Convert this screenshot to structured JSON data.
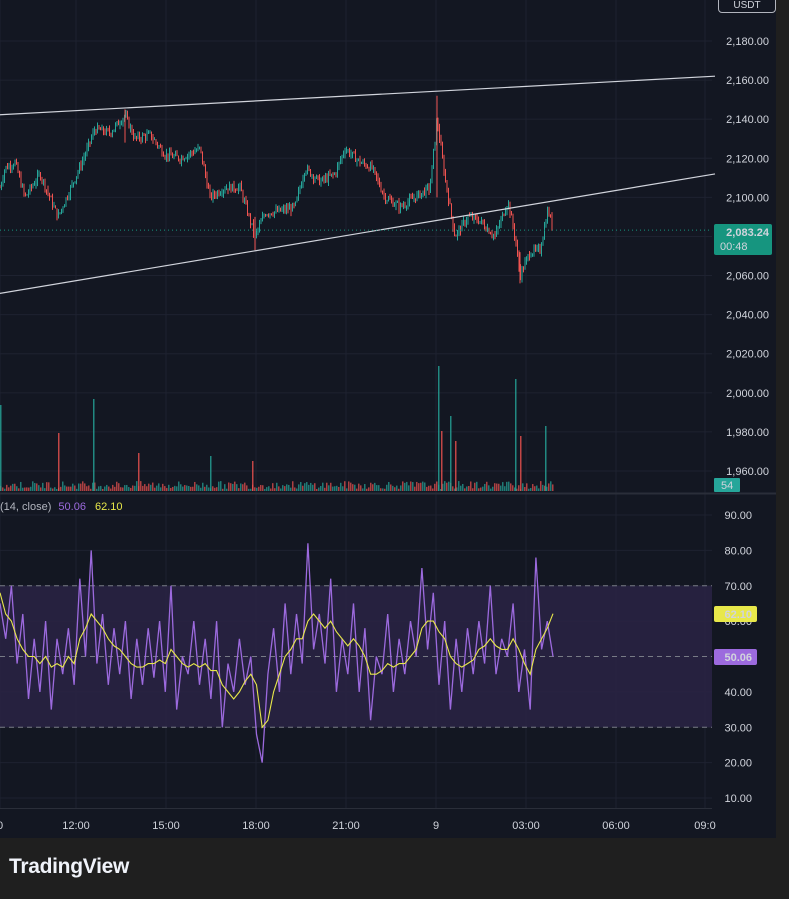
{
  "currency_button": "USDT",
  "brand": "TradingView",
  "colors": {
    "background": "#131722",
    "up": "#26a69a",
    "down": "#ef5350",
    "trendline": "#d1d4dc",
    "rsi_line": "#9c6ade",
    "rsi_ma_line": "#e8e84a",
    "rsi_band": "#2a2344",
    "price_tag": "#16957f",
    "volume_tag": "#26a69a"
  },
  "price_axis": {
    "ticks": [
      "2,180.00",
      "2,160.00",
      "2,140.00",
      "2,120.00",
      "2,100.00",
      "2,080.00",
      "2,060.00",
      "2,040.00",
      "2,020.00",
      "2,000.00",
      "1,980.00",
      "1,960.00"
    ],
    "last_price": "2,083.24",
    "countdown": "00:48",
    "volume_value": "54"
  },
  "indicator": {
    "legend_prefix": "(14, close)",
    "rsi_value": "50.06",
    "ma_value": "62.10",
    "ticks": [
      "90.00",
      "80.00",
      "70.00",
      "60.00",
      "50.00",
      "40.00",
      "30.00",
      "20.00",
      "10.00"
    ],
    "upper_band": 70,
    "middle_band": 50,
    "lower_band": 30
  },
  "time_axis": {
    "ticks": [
      "0",
      "12:00",
      "15:00",
      "18:00",
      "21:00",
      "9",
      "03:00",
      "06:00",
      "09:0"
    ]
  },
  "chart_data": [
    {
      "type": "candlestick",
      "title": "",
      "x_labels": [
        "12:00",
        "15:00",
        "18:00",
        "21:00",
        "9",
        "03:00",
        "06:00"
      ],
      "ylim": [
        1950,
        2190
      ],
      "close_path": [
        {
          "x": 0,
          "y": 2105
        },
        {
          "x": 5,
          "y": 2115
        },
        {
          "x": 15,
          "y": 2118
        },
        {
          "x": 25,
          "y": 2100
        },
        {
          "x": 40,
          "y": 2112
        },
        {
          "x": 58,
          "y": 2090
        },
        {
          "x": 70,
          "y": 2104
        },
        {
          "x": 82,
          "y": 2118
        },
        {
          "x": 95,
          "y": 2135
        },
        {
          "x": 110,
          "y": 2133
        },
        {
          "x": 125,
          "y": 2142
        },
        {
          "x": 135,
          "y": 2130
        },
        {
          "x": 150,
          "y": 2132
        },
        {
          "x": 165,
          "y": 2122
        },
        {
          "x": 180,
          "y": 2120
        },
        {
          "x": 200,
          "y": 2125
        },
        {
          "x": 210,
          "y": 2100
        },
        {
          "x": 225,
          "y": 2105
        },
        {
          "x": 240,
          "y": 2105
        },
        {
          "x": 255,
          "y": 2080
        },
        {
          "x": 265,
          "y": 2092
        },
        {
          "x": 280,
          "y": 2093
        },
        {
          "x": 295,
          "y": 2095
        },
        {
          "x": 305,
          "y": 2115
        },
        {
          "x": 320,
          "y": 2108
        },
        {
          "x": 335,
          "y": 2112
        },
        {
          "x": 345,
          "y": 2125
        },
        {
          "x": 360,
          "y": 2118
        },
        {
          "x": 372,
          "y": 2115
        },
        {
          "x": 385,
          "y": 2100
        },
        {
          "x": 400,
          "y": 2095
        },
        {
          "x": 415,
          "y": 2100
        },
        {
          "x": 430,
          "y": 2105
        },
        {
          "x": 437,
          "y": 2140
        },
        {
          "x": 445,
          "y": 2110
        },
        {
          "x": 455,
          "y": 2080
        },
        {
          "x": 468,
          "y": 2090
        },
        {
          "x": 480,
          "y": 2088
        },
        {
          "x": 495,
          "y": 2080
        },
        {
          "x": 508,
          "y": 2098
        },
        {
          "x": 515,
          "y": 2080
        },
        {
          "x": 520,
          "y": 2060
        },
        {
          "x": 530,
          "y": 2072
        },
        {
          "x": 540,
          "y": 2073
        },
        {
          "x": 548,
          "y": 2094
        },
        {
          "x": 553,
          "y": 2083.24
        }
      ],
      "trendlines": [
        {
          "from": {
            "x": -10,
            "y": 2142
          },
          "to": {
            "x": 715,
            "y": 2162
          }
        },
        {
          "from": {
            "x": -10,
            "y": 2050
          },
          "to": {
            "x": 715,
            "y": 2112
          }
        }
      ],
      "volume_spikes": [
        {
          "x": 0,
          "v": 86
        },
        {
          "x": 58,
          "v": 58
        },
        {
          "x": 93,
          "v": 92
        },
        {
          "x": 138,
          "v": 38
        },
        {
          "x": 210,
          "v": 35
        },
        {
          "x": 252,
          "v": 30
        },
        {
          "x": 438,
          "v": 125
        },
        {
          "x": 441,
          "v": 60
        },
        {
          "x": 450,
          "v": 75
        },
        {
          "x": 455,
          "v": 50
        },
        {
          "x": 515,
          "v": 112
        },
        {
          "x": 520,
          "v": 55
        },
        {
          "x": 545,
          "v": 65
        }
      ]
    },
    {
      "type": "line",
      "title": "",
      "ylim": [
        5,
        95
      ],
      "series": [
        {
          "name": "",
          "values": [
            65,
            55,
            70,
            48,
            62,
            38,
            55,
            40,
            60,
            35,
            55,
            45,
            58,
            42,
            72,
            50,
            80,
            48,
            62,
            42,
            58,
            45,
            60,
            38,
            55,
            42,
            58,
            44,
            60,
            40,
            70,
            35,
            50,
            45,
            60,
            42,
            55,
            38,
            60,
            30,
            48,
            40,
            55,
            42,
            50,
            28,
            20,
            45,
            58,
            40,
            65,
            45,
            62,
            48,
            82,
            52,
            62,
            48,
            72,
            40,
            55,
            45,
            65,
            40,
            58,
            32,
            50,
            45,
            62,
            40,
            55,
            45,
            60,
            50,
            75,
            52,
            68,
            42,
            60,
            35,
            55,
            40,
            58,
            45,
            60,
            48,
            70,
            45,
            55,
            50,
            65,
            40,
            52,
            35,
            78,
            52,
            60,
            50
          ]
        },
        {
          "name": "",
          "values": [
            68,
            62,
            60,
            55,
            52,
            50,
            50,
            48,
            50,
            47,
            48,
            47,
            50,
            48,
            55,
            58,
            62,
            60,
            58,
            55,
            53,
            52,
            50,
            48,
            47,
            47,
            48,
            48,
            49,
            48,
            52,
            50,
            48,
            47,
            48,
            47,
            48,
            46,
            46,
            42,
            40,
            38,
            40,
            43,
            45,
            42,
            30,
            32,
            40,
            45,
            50,
            52,
            55,
            55,
            60,
            62,
            60,
            58,
            60,
            57,
            55,
            53,
            55,
            53,
            50,
            45,
            45,
            46,
            48,
            47,
            48,
            48,
            50,
            52,
            58,
            60,
            60,
            57,
            55,
            50,
            48,
            47,
            48,
            49,
            52,
            53,
            55,
            53,
            52,
            52,
            55,
            52,
            48,
            45,
            52,
            55,
            58,
            62.1
          ]
        }
      ]
    }
  ]
}
